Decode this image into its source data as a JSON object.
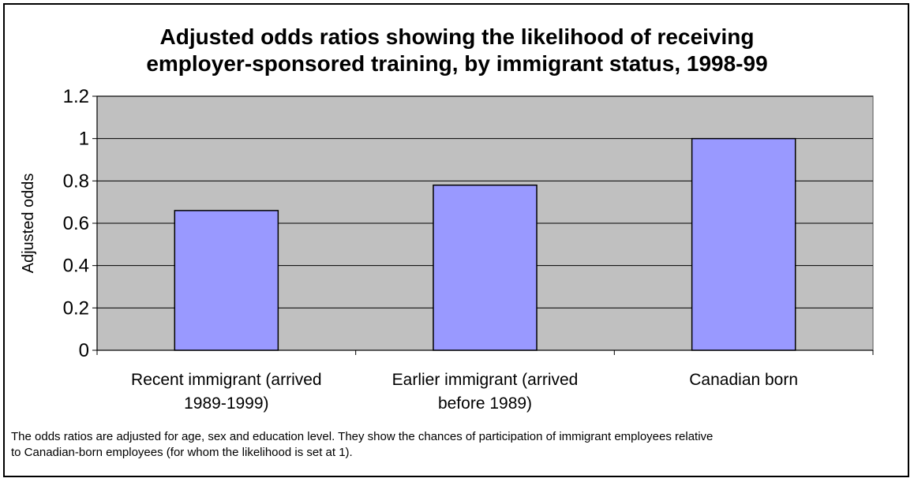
{
  "chart_data": {
    "type": "bar",
    "title_lines": [
      "Adjusted odds ratios showing the likelihood of receiving",
      "employer-sponsored training, by immigrant status, 1998-99"
    ],
    "ylabel": "Adjusted odds",
    "xlabel": "",
    "ylim": [
      0,
      1.2
    ],
    "yticks": [
      "0",
      "0.2",
      "0.4",
      "0.6",
      "0.8",
      "1",
      "1.2"
    ],
    "categories": [
      [
        "Recent immigrant (arrived",
        "1989-1999)"
      ],
      [
        "Earlier immigrant (arrived",
        "before 1989)"
      ],
      [
        "Canadian born"
      ]
    ],
    "values": [
      0.66,
      0.78,
      1.0
    ],
    "grid": true,
    "colors": {
      "bar": "#9999ff",
      "plot_bg": "#c0c0c0"
    }
  },
  "footnote_lines": [
    "The odds ratios are adjusted for age, sex and education level. They show the chances of participation of immigrant employees relative",
    "to Canadian-born employees (for whom the likelihood is set at 1)."
  ]
}
